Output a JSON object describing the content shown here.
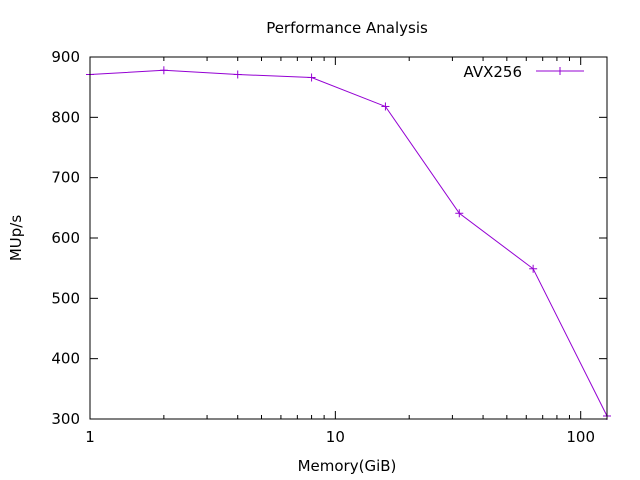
{
  "chart_data": {
    "type": "line",
    "title": "Performance Analysis",
    "xlabel": "Memory(GiB)",
    "ylabel": "MUp/s",
    "xscale": "log",
    "xlim": [
      1,
      128
    ],
    "ylim": [
      300,
      900
    ],
    "xticks": [
      1,
      10,
      100
    ],
    "xtick_labels": [
      "1",
      "10",
      "100"
    ],
    "yticks": [
      300,
      400,
      500,
      600,
      700,
      800,
      900
    ],
    "ytick_labels": [
      "300",
      "400",
      "500",
      "600",
      "700",
      "800",
      "900"
    ],
    "grid": false,
    "legend_position": "top-right",
    "series": [
      {
        "name": "AVX256",
        "color": "#9400d3",
        "marker": "plus",
        "x": [
          1,
          2,
          4,
          8,
          16,
          32,
          64,
          128
        ],
        "values": [
          871,
          878,
          871,
          866,
          818,
          641,
          549,
          305
        ]
      }
    ]
  }
}
